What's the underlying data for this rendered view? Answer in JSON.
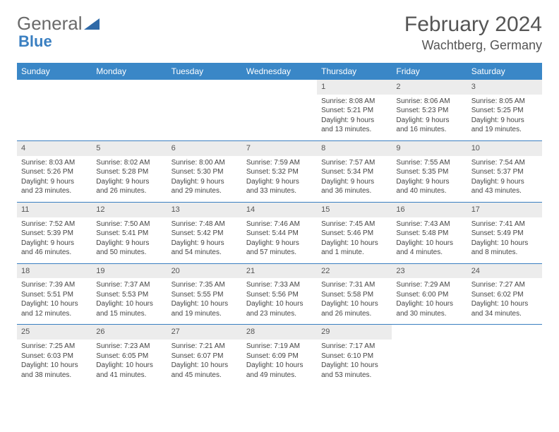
{
  "logo": {
    "part1": "General",
    "part2": "Blue"
  },
  "title": "February 2024",
  "location": "Wachtberg, Germany",
  "theme": {
    "header_bg": "#3a87c7",
    "daynum_bg": "#ececec",
    "rule": "#3a7fc1"
  },
  "weekdays": [
    "Sunday",
    "Monday",
    "Tuesday",
    "Wednesday",
    "Thursday",
    "Friday",
    "Saturday"
  ],
  "weeks": [
    [
      {
        "day": "",
        "sun": "",
        "set": "",
        "dl": ""
      },
      {
        "day": "",
        "sun": "",
        "set": "",
        "dl": ""
      },
      {
        "day": "",
        "sun": "",
        "set": "",
        "dl": ""
      },
      {
        "day": "",
        "sun": "",
        "set": "",
        "dl": ""
      },
      {
        "day": "1",
        "sun": "Sunrise: 8:08 AM",
        "set": "Sunset: 5:21 PM",
        "dl": "Daylight: 9 hours and 13 minutes."
      },
      {
        "day": "2",
        "sun": "Sunrise: 8:06 AM",
        "set": "Sunset: 5:23 PM",
        "dl": "Daylight: 9 hours and 16 minutes."
      },
      {
        "day": "3",
        "sun": "Sunrise: 8:05 AM",
        "set": "Sunset: 5:25 PM",
        "dl": "Daylight: 9 hours and 19 minutes."
      }
    ],
    [
      {
        "day": "4",
        "sun": "Sunrise: 8:03 AM",
        "set": "Sunset: 5:26 PM",
        "dl": "Daylight: 9 hours and 23 minutes."
      },
      {
        "day": "5",
        "sun": "Sunrise: 8:02 AM",
        "set": "Sunset: 5:28 PM",
        "dl": "Daylight: 9 hours and 26 minutes."
      },
      {
        "day": "6",
        "sun": "Sunrise: 8:00 AM",
        "set": "Sunset: 5:30 PM",
        "dl": "Daylight: 9 hours and 29 minutes."
      },
      {
        "day": "7",
        "sun": "Sunrise: 7:59 AM",
        "set": "Sunset: 5:32 PM",
        "dl": "Daylight: 9 hours and 33 minutes."
      },
      {
        "day": "8",
        "sun": "Sunrise: 7:57 AM",
        "set": "Sunset: 5:34 PM",
        "dl": "Daylight: 9 hours and 36 minutes."
      },
      {
        "day": "9",
        "sun": "Sunrise: 7:55 AM",
        "set": "Sunset: 5:35 PM",
        "dl": "Daylight: 9 hours and 40 minutes."
      },
      {
        "day": "10",
        "sun": "Sunrise: 7:54 AM",
        "set": "Sunset: 5:37 PM",
        "dl": "Daylight: 9 hours and 43 minutes."
      }
    ],
    [
      {
        "day": "11",
        "sun": "Sunrise: 7:52 AM",
        "set": "Sunset: 5:39 PM",
        "dl": "Daylight: 9 hours and 46 minutes."
      },
      {
        "day": "12",
        "sun": "Sunrise: 7:50 AM",
        "set": "Sunset: 5:41 PM",
        "dl": "Daylight: 9 hours and 50 minutes."
      },
      {
        "day": "13",
        "sun": "Sunrise: 7:48 AM",
        "set": "Sunset: 5:42 PM",
        "dl": "Daylight: 9 hours and 54 minutes."
      },
      {
        "day": "14",
        "sun": "Sunrise: 7:46 AM",
        "set": "Sunset: 5:44 PM",
        "dl": "Daylight: 9 hours and 57 minutes."
      },
      {
        "day": "15",
        "sun": "Sunrise: 7:45 AM",
        "set": "Sunset: 5:46 PM",
        "dl": "Daylight: 10 hours and 1 minute."
      },
      {
        "day": "16",
        "sun": "Sunrise: 7:43 AM",
        "set": "Sunset: 5:48 PM",
        "dl": "Daylight: 10 hours and 4 minutes."
      },
      {
        "day": "17",
        "sun": "Sunrise: 7:41 AM",
        "set": "Sunset: 5:49 PM",
        "dl": "Daylight: 10 hours and 8 minutes."
      }
    ],
    [
      {
        "day": "18",
        "sun": "Sunrise: 7:39 AM",
        "set": "Sunset: 5:51 PM",
        "dl": "Daylight: 10 hours and 12 minutes."
      },
      {
        "day": "19",
        "sun": "Sunrise: 7:37 AM",
        "set": "Sunset: 5:53 PM",
        "dl": "Daylight: 10 hours and 15 minutes."
      },
      {
        "day": "20",
        "sun": "Sunrise: 7:35 AM",
        "set": "Sunset: 5:55 PM",
        "dl": "Daylight: 10 hours and 19 minutes."
      },
      {
        "day": "21",
        "sun": "Sunrise: 7:33 AM",
        "set": "Sunset: 5:56 PM",
        "dl": "Daylight: 10 hours and 23 minutes."
      },
      {
        "day": "22",
        "sun": "Sunrise: 7:31 AM",
        "set": "Sunset: 5:58 PM",
        "dl": "Daylight: 10 hours and 26 minutes."
      },
      {
        "day": "23",
        "sun": "Sunrise: 7:29 AM",
        "set": "Sunset: 6:00 PM",
        "dl": "Daylight: 10 hours and 30 minutes."
      },
      {
        "day": "24",
        "sun": "Sunrise: 7:27 AM",
        "set": "Sunset: 6:02 PM",
        "dl": "Daylight: 10 hours and 34 minutes."
      }
    ],
    [
      {
        "day": "25",
        "sun": "Sunrise: 7:25 AM",
        "set": "Sunset: 6:03 PM",
        "dl": "Daylight: 10 hours and 38 minutes."
      },
      {
        "day": "26",
        "sun": "Sunrise: 7:23 AM",
        "set": "Sunset: 6:05 PM",
        "dl": "Daylight: 10 hours and 41 minutes."
      },
      {
        "day": "27",
        "sun": "Sunrise: 7:21 AM",
        "set": "Sunset: 6:07 PM",
        "dl": "Daylight: 10 hours and 45 minutes."
      },
      {
        "day": "28",
        "sun": "Sunrise: 7:19 AM",
        "set": "Sunset: 6:09 PM",
        "dl": "Daylight: 10 hours and 49 minutes."
      },
      {
        "day": "29",
        "sun": "Sunrise: 7:17 AM",
        "set": "Sunset: 6:10 PM",
        "dl": "Daylight: 10 hours and 53 minutes."
      },
      {
        "day": "",
        "sun": "",
        "set": "",
        "dl": ""
      },
      {
        "day": "",
        "sun": "",
        "set": "",
        "dl": ""
      }
    ]
  ]
}
